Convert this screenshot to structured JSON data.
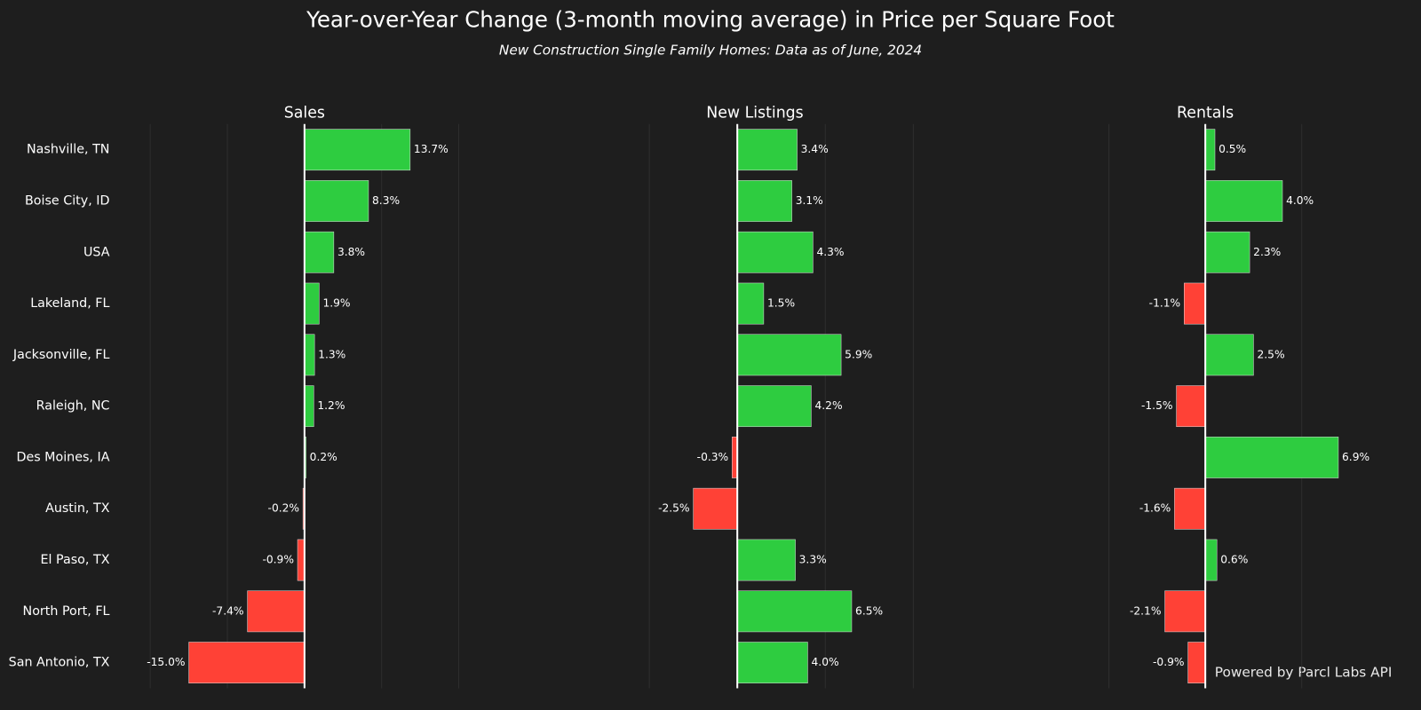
{
  "title": "Year-over-Year Change (3-month moving average) in Price per Square Foot",
  "subtitle": "New Construction Single Family Homes: Data as of June, 2024",
  "watermark": "Powered by Parcl Labs API",
  "positive_color": "#2ecc40",
  "negative_color": "#ff4136",
  "chart_data": [
    {
      "type": "bar",
      "orientation": "horizontal",
      "title": "Sales",
      "categories": [
        "Nashville, TN",
        "Boise City, ID",
        "USA",
        "Lakeland, FL",
        "Jacksonville, FL",
        "Raleigh, NC",
        "Des Moines, IA",
        "Austin, TX",
        "El Paso, TX",
        "North Port, FL",
        "San Antonio, TX"
      ],
      "values": [
        13.7,
        8.3,
        3.8,
        1.9,
        1.3,
        1.2,
        0.2,
        -0.2,
        -0.9,
        -7.4,
        -15.0
      ],
      "value_labels": [
        "13.7%",
        "8.3%",
        "3.8%",
        "1.9%",
        "1.3%",
        "1.2%",
        "0.2%",
        "-0.2%",
        "-0.9%",
        "-7.4%",
        "-15.0%"
      ],
      "xlim": [
        -23.5,
        23.5
      ],
      "xticks": [
        -20,
        -10,
        0,
        10,
        20
      ],
      "grid": true
    },
    {
      "type": "bar",
      "orientation": "horizontal",
      "title": "New Listings",
      "values": [
        3.4,
        3.1,
        4.3,
        1.5,
        5.9,
        4.2,
        -0.3,
        -2.5,
        3.3,
        6.5,
        4.0
      ],
      "value_labels": [
        "3.4%",
        "3.1%",
        "4.3%",
        "1.5%",
        "5.9%",
        "4.2%",
        "-0.3%",
        "-2.5%",
        "3.3%",
        "6.5%",
        "4.0%"
      ],
      "xlim": [
        -9.3,
        11.3
      ],
      "xticks": [
        -5,
        0,
        5,
        10
      ],
      "grid": true
    },
    {
      "type": "bar",
      "orientation": "horizontal",
      "title": "Rentals",
      "values": [
        0.5,
        4.0,
        2.3,
        -1.1,
        2.5,
        -1.5,
        6.9,
        -1.6,
        0.6,
        -2.1,
        -0.9
      ],
      "value_labels": [
        "0.5%",
        "4.0%",
        "2.3%",
        "-1.1%",
        "2.5%",
        "-1.5%",
        "6.9%",
        "-1.6%",
        "0.6%",
        "-2.1%",
        "-0.9%"
      ],
      "xlim": [
        -9.4,
        9.4
      ],
      "xticks": [
        -5,
        0,
        5
      ],
      "grid": true
    }
  ]
}
